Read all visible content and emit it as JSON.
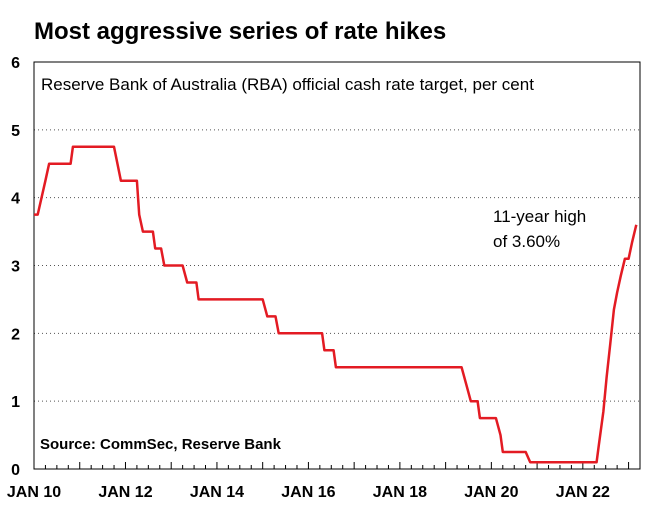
{
  "chart_data": {
    "type": "line",
    "title": "Most aggressive series of rate hikes",
    "subtitle": "Reserve Bank of Australia (RBA) official cash rate target, per cent",
    "source": "Source: CommSec, Reserve Bank",
    "annotation": [
      "11-year high",
      "of 3.60%"
    ],
    "xlabel": "",
    "ylabel": "",
    "ylim": [
      0,
      6
    ],
    "yticks": [
      "0",
      "1",
      "2",
      "3",
      "4",
      "5",
      "6"
    ],
    "xticks": [
      {
        "label": "JAN 10",
        "x": 2010.0
      },
      {
        "label": "JAN 12",
        "x": 2012.0
      },
      {
        "label": "JAN 14",
        "x": 2014.0
      },
      {
        "label": "JAN 16",
        "x": 2016.0
      },
      {
        "label": "JAN 18",
        "x": 2018.0
      },
      {
        "label": "JAN 20",
        "x": 2020.0
      },
      {
        "label": "JAN 22",
        "x": 2022.0
      }
    ],
    "grid": "horizontal dotted",
    "line_color": "#e31b23",
    "series": [
      {
        "points": [
          [
            2010.0,
            3.75
          ],
          [
            2010.08,
            3.75
          ],
          [
            2010.25,
            4.25
          ],
          [
            2010.33,
            4.5
          ],
          [
            2010.8,
            4.5
          ],
          [
            2010.85,
            4.75
          ],
          [
            2011.75,
            4.75
          ],
          [
            2011.9,
            4.25
          ],
          [
            2012.25,
            4.25
          ],
          [
            2012.3,
            3.75
          ],
          [
            2012.38,
            3.5
          ],
          [
            2012.6,
            3.5
          ],
          [
            2012.65,
            3.25
          ],
          [
            2012.78,
            3.25
          ],
          [
            2012.85,
            3.0
          ],
          [
            2013.25,
            3.0
          ],
          [
            2013.35,
            2.75
          ],
          [
            2013.55,
            2.75
          ],
          [
            2013.6,
            2.5
          ],
          [
            2015.0,
            2.5
          ],
          [
            2015.1,
            2.25
          ],
          [
            2015.28,
            2.25
          ],
          [
            2015.35,
            2.0
          ],
          [
            2016.3,
            2.0
          ],
          [
            2016.35,
            1.75
          ],
          [
            2016.55,
            1.75
          ],
          [
            2016.6,
            1.5
          ],
          [
            2019.35,
            1.5
          ],
          [
            2019.45,
            1.25
          ],
          [
            2019.55,
            1.0
          ],
          [
            2019.6,
            1.0
          ],
          [
            2019.7,
            1.0
          ],
          [
            2019.75,
            0.75
          ],
          [
            2020.1,
            0.75
          ],
          [
            2020.2,
            0.5
          ],
          [
            2020.25,
            0.25
          ],
          [
            2020.75,
            0.25
          ],
          [
            2020.85,
            0.1
          ],
          [
            2022.3,
            0.1
          ],
          [
            2022.35,
            0.35
          ],
          [
            2022.45,
            0.85
          ],
          [
            2022.52,
            1.35
          ],
          [
            2022.6,
            1.85
          ],
          [
            2022.68,
            2.35
          ],
          [
            2022.75,
            2.6
          ],
          [
            2022.83,
            2.85
          ],
          [
            2022.92,
            3.1
          ],
          [
            2023.0,
            3.1
          ],
          [
            2023.08,
            3.35
          ],
          [
            2023.17,
            3.6
          ]
        ]
      }
    ]
  }
}
